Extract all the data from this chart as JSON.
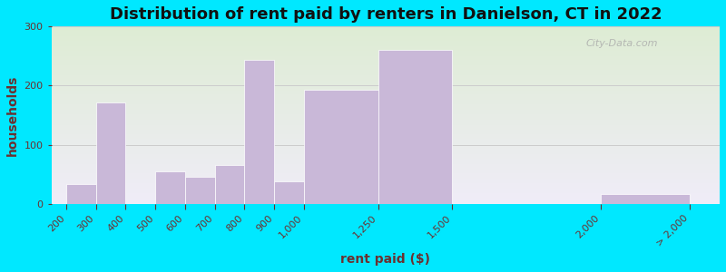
{
  "title": "Distribution of rent paid by renters in Danielson, CT in 2022",
  "xlabel": "rent paid ($)",
  "ylabel": "households",
  "bar_color": "#c9b8d8",
  "background_outer": "#00e8ff",
  "background_top": "#deecd4",
  "background_bottom": "#f0ecf8",
  "tick_positions": [
    200,
    300,
    400,
    500,
    600,
    700,
    800,
    900,
    1000,
    1250,
    1500,
    2000,
    2300
  ],
  "tick_labels": [
    "200",
    "300",
    "400",
    "500",
    "600",
    "700",
    "800",
    "900",
    "1,000",
    "1,250",
    "1,500",
    "2,000",
    "> 2,000"
  ],
  "bar_heights": [
    33,
    172,
    0,
    55,
    45,
    65,
    243,
    38,
    193,
    260,
    0,
    17
  ],
  "bar_left_edges": [
    200,
    300,
    400,
    500,
    600,
    700,
    800,
    900,
    1000,
    1250,
    1500,
    2000
  ],
  "bar_right_edges": [
    300,
    400,
    500,
    600,
    700,
    800,
    900,
    1000,
    1250,
    1500,
    2000,
    2300
  ],
  "xlim": [
    150,
    2400
  ],
  "ylim": [
    0,
    300
  ],
  "yticks": [
    0,
    100,
    200,
    300
  ],
  "title_fontsize": 13,
  "axis_label_fontsize": 10,
  "tick_fontsize": 8,
  "watermark_text": "City-Data.com",
  "grid_color": "#cccccc",
  "text_color": "#6b3030"
}
